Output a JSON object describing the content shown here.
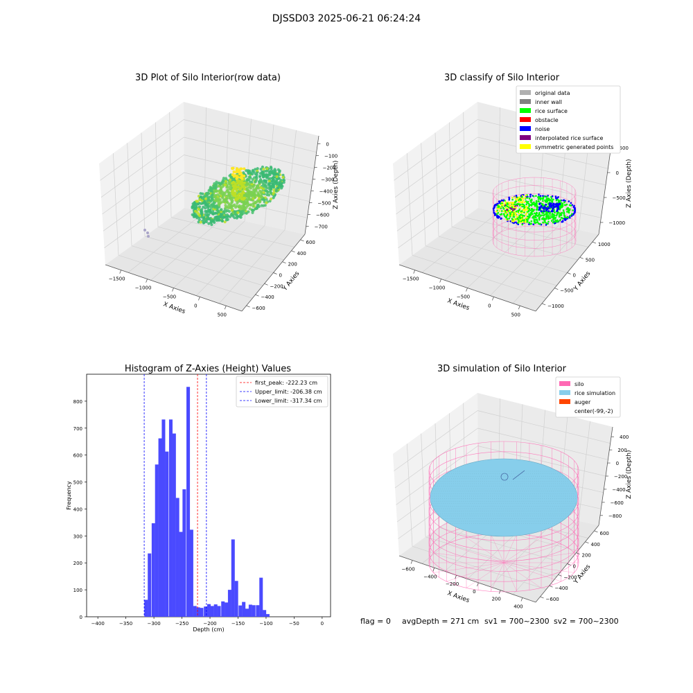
{
  "suptitle": "DJSSD03 2025-06-21 06:24:24",
  "footer": {
    "flag": "flag = 0",
    "avg_depth": "avgDepth = 271 cm",
    "sv1": "sv1 = 700~2300",
    "sv2": "sv2 = 700~2300"
  },
  "chart_data": [
    {
      "type": "scatter",
      "projection": "3d",
      "title": "3D Plot of Silo Interior(row data)",
      "xlabel": "X Axies",
      "ylabel": "Y Axies",
      "zlabel": "Z Axies (Depth)",
      "x_ticks": [
        "−1500",
        "−1000",
        "−500",
        "0",
        "500"
      ],
      "y_ticks": [
        "−600",
        "−400",
        "−200",
        "0",
        "200",
        "400",
        "600"
      ],
      "z_ticks": [
        "0",
        "−100",
        "−200",
        "−300",
        "−400",
        "−500",
        "−600",
        "−700"
      ],
      "colormap": [
        "#3aba73",
        "#48c16e",
        "#7ad151",
        "#bddf26",
        "#fde725"
      ],
      "outlier_color": "#a9a4c8",
      "grid": true
    },
    {
      "type": "scatter",
      "projection": "3d",
      "title": "3D classify of Silo Interior",
      "xlabel": "X Axies",
      "ylabel": "Y Axies",
      "zlabel": "Z Axies (Depth)",
      "x_ticks": [
        "−1500",
        "−1000",
        "−500",
        "0",
        "500"
      ],
      "y_ticks": [
        "−1000",
        "−500",
        "0",
        "500",
        "1000"
      ],
      "z_ticks": [
        "500",
        "0",
        "−500",
        "−1000"
      ],
      "legend_position": "upper-right",
      "legend": [
        {
          "label": "original data",
          "color": "#b0b0b0"
        },
        {
          "label": "inner wall",
          "color": "#808080"
        },
        {
          "label": "rice surface",
          "color": "#00ff00"
        },
        {
          "label": "obstacle",
          "color": "#ff0000"
        },
        {
          "label": "noise",
          "color": "#0000ff"
        },
        {
          "label": "interpolated rice surface",
          "color": "#800080"
        },
        {
          "label": "symmetric generated points",
          "color": "#ffff00"
        }
      ],
      "wall_color": "#ff69b4",
      "grid": true
    },
    {
      "type": "bar",
      "title": "Histogram of Z-Axies (Height) Values",
      "xlabel": "Depth (cm)",
      "ylabel": "Frequency",
      "xlim": [
        -420,
        15
      ],
      "ylim": [
        0,
        900
      ],
      "x_ticks": [
        -400,
        -350,
        -300,
        -250,
        -200,
        -150,
        -100,
        -50,
        0
      ],
      "y_ticks": [
        0,
        100,
        200,
        300,
        400,
        500,
        600,
        700,
        800
      ],
      "bar_color": "#4a4aff",
      "bin_width": 6.2,
      "bins": [
        {
          "x": -317,
          "count": 63
        },
        {
          "x": -311,
          "count": 235
        },
        {
          "x": -304,
          "count": 347
        },
        {
          "x": -298,
          "count": 565
        },
        {
          "x": -292,
          "count": 662
        },
        {
          "x": -286,
          "count": 732
        },
        {
          "x": -280,
          "count": 613
        },
        {
          "x": -273,
          "count": 732
        },
        {
          "x": -267,
          "count": 680
        },
        {
          "x": -261,
          "count": 441
        },
        {
          "x": -255,
          "count": 315
        },
        {
          "x": -249,
          "count": 473
        },
        {
          "x": -242,
          "count": 853
        },
        {
          "x": -236,
          "count": 323
        },
        {
          "x": -230,
          "count": 40
        },
        {
          "x": -224,
          "count": 35
        },
        {
          "x": -218,
          "count": 33
        },
        {
          "x": -211,
          "count": 38
        },
        {
          "x": -205,
          "count": 47
        },
        {
          "x": -199,
          "count": 40
        },
        {
          "x": -193,
          "count": 46
        },
        {
          "x": -187,
          "count": 40
        },
        {
          "x": -180,
          "count": 57
        },
        {
          "x": -174,
          "count": 53
        },
        {
          "x": -168,
          "count": 100
        },
        {
          "x": -162,
          "count": 287
        },
        {
          "x": -156,
          "count": 133
        },
        {
          "x": -149,
          "count": 42
        },
        {
          "x": -143,
          "count": 55
        },
        {
          "x": -137,
          "count": 30
        },
        {
          "x": -131,
          "count": 45
        },
        {
          "x": -125,
          "count": 43
        },
        {
          "x": -118,
          "count": 43
        },
        {
          "x": -112,
          "count": 145
        },
        {
          "x": -106,
          "count": 25
        },
        {
          "x": -100,
          "count": 10
        }
      ],
      "vlines": [
        {
          "label": "first_peak: -222.23 cm",
          "value": -222.23,
          "color": "#ff0000"
        },
        {
          "label": "Upper_limit: -206.38 cm",
          "value": -206.38,
          "color": "#0000ff"
        },
        {
          "label": "Lower_limit: -317.34 cm",
          "value": -317.34,
          "color": "#0000ff"
        }
      ],
      "legend_position": "upper-right"
    },
    {
      "type": "scatter",
      "projection": "3d",
      "title": "3D simulation of Silo Interior",
      "xlabel": "X Axies",
      "ylabel": "Y Axies",
      "zlabel": "Z Axies (Depth)",
      "x_ticks": [
        "−600",
        "−400",
        "−200",
        "0",
        "200",
        "400"
      ],
      "y_ticks": [
        "−600",
        "−400",
        "−200",
        "0",
        "200",
        "400",
        "600"
      ],
      "z_ticks": [
        "400",
        "200",
        "0",
        "−200",
        "−400",
        "−600",
        "−800"
      ],
      "legend_position": "upper-right",
      "legend": [
        {
          "label": "silo",
          "color": "#ff69b4"
        },
        {
          "label": "rice simulation",
          "color": "#87ceeb"
        },
        {
          "label": "auger",
          "color": "#ff4500"
        },
        {
          "label": "center(-99,-2)",
          "color": ""
        }
      ],
      "grid": true
    }
  ]
}
